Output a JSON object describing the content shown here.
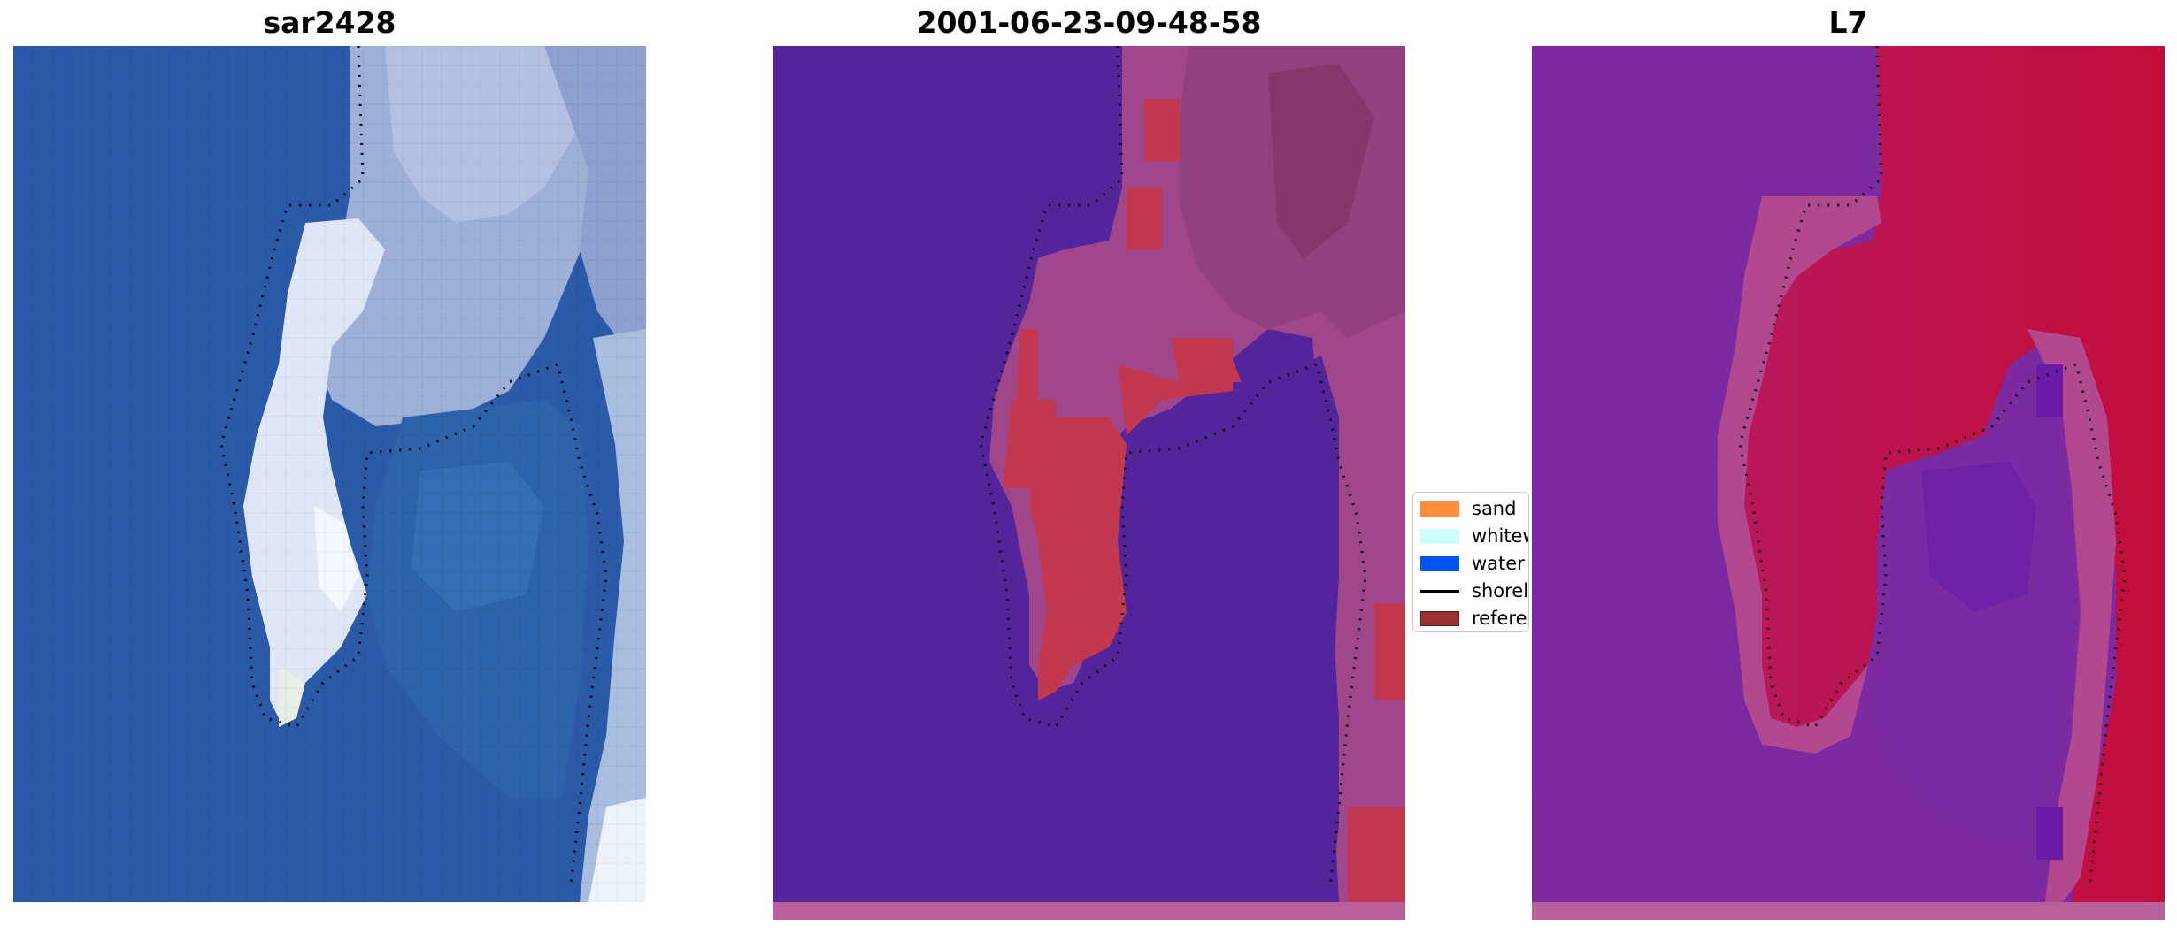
{
  "panels": [
    {
      "title": "sar2428",
      "image": "true-color-rgb-satellite-image"
    },
    {
      "title": "2001-06-23-09-48-58",
      "image": "classified-image-overlay"
    },
    {
      "title": "L7",
      "image": "index-heatmap-image"
    }
  ],
  "legend": {
    "items": [
      {
        "label": "sand",
        "color": "#ff8c3a",
        "kind": "patch"
      },
      {
        "label": "whitew",
        "color": "#ccffff",
        "kind": "patch"
      },
      {
        "label": "water",
        "color": "#0055ee",
        "kind": "patch"
      },
      {
        "label": "shorel",
        "color": "#000000",
        "kind": "line"
      },
      {
        "label": "referen",
        "color": "#993333",
        "kind": "patch"
      }
    ]
  },
  "colors": {
    "water_blue": "#2a5aa6",
    "class_water": "#54249a",
    "class_sand_overlay": "#b04a86",
    "class_red": "#c2394f",
    "index_purple": "#7c2aa0",
    "index_red": "#c0103a"
  }
}
